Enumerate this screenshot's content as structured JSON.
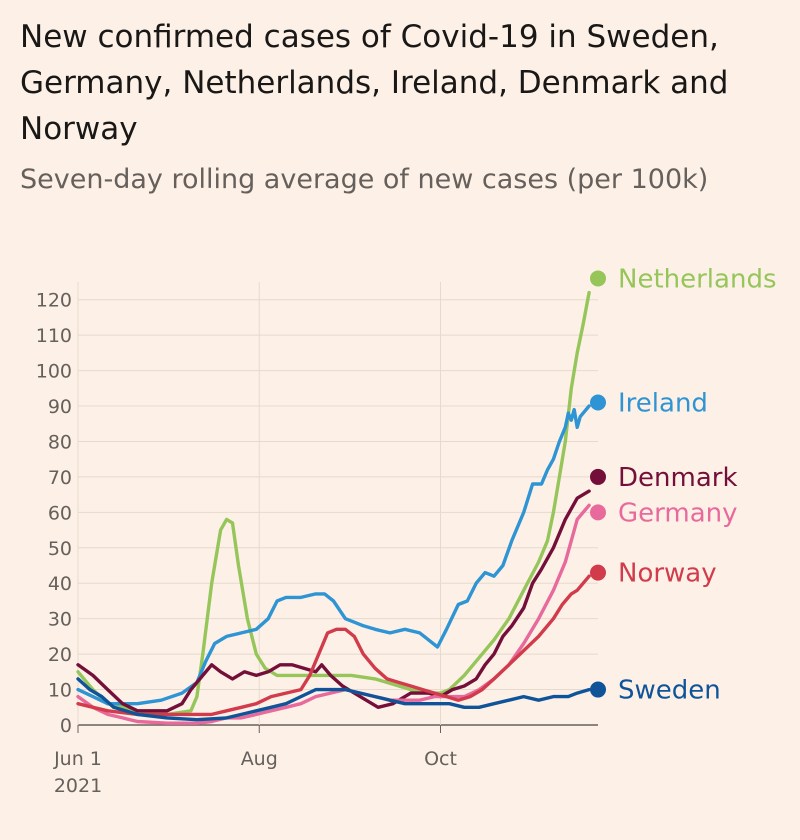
{
  "chart_data": {
    "type": "line",
    "title": "New confirmed cases of Covid-19 in Sweden, Germany, Netherlands, Ireland, Denmark and Norway",
    "subtitle": "Seven-day rolling average of new cases (per 100k)",
    "xlabel": "",
    "ylabel": "",
    "x_ticks": [
      {
        "label": "Jun 1",
        "sublabel": "2021",
        "day": 0
      },
      {
        "label": "Aug",
        "day": 61
      },
      {
        "label": "Oct",
        "day": 122
      }
    ],
    "y_ticks": [
      0,
      10,
      20,
      30,
      40,
      50,
      60,
      70,
      80,
      90,
      100,
      110,
      120
    ],
    "ylim": [
      0,
      125
    ],
    "xlim": [
      0,
      175
    ],
    "grid": "vertical",
    "series": [
      {
        "name": "Netherlands",
        "color": "#96c55a",
        "points": [
          [
            0,
            15
          ],
          [
            5,
            10
          ],
          [
            10,
            6
          ],
          [
            20,
            4
          ],
          [
            30,
            3
          ],
          [
            38,
            4
          ],
          [
            40,
            8
          ],
          [
            42,
            20
          ],
          [
            45,
            40
          ],
          [
            48,
            55
          ],
          [
            50,
            58
          ],
          [
            52,
            57
          ],
          [
            54,
            45
          ],
          [
            57,
            30
          ],
          [
            60,
            20
          ],
          [
            63,
            16
          ],
          [
            67,
            14
          ],
          [
            75,
            14
          ],
          [
            82,
            14
          ],
          [
            92,
            14
          ],
          [
            100,
            13
          ],
          [
            108,
            11
          ],
          [
            112,
            10
          ],
          [
            117,
            9
          ],
          [
            122,
            9
          ],
          [
            125,
            10
          ],
          [
            130,
            14
          ],
          [
            135,
            19
          ],
          [
            140,
            24
          ],
          [
            145,
            30
          ],
          [
            150,
            38
          ],
          [
            155,
            46
          ],
          [
            158,
            52
          ],
          [
            160,
            60
          ],
          [
            162,
            70
          ],
          [
            164,
            80
          ],
          [
            166,
            95
          ],
          [
            168,
            105
          ],
          [
            170,
            113
          ],
          [
            172,
            122
          ]
        ]
      },
      {
        "name": "Ireland",
        "color": "#2e94d3",
        "points": [
          [
            0,
            10
          ],
          [
            5,
            8
          ],
          [
            10,
            6
          ],
          [
            20,
            6
          ],
          [
            28,
            7
          ],
          [
            35,
            9
          ],
          [
            40,
            12
          ],
          [
            43,
            18
          ],
          [
            46,
            23
          ],
          [
            50,
            25
          ],
          [
            55,
            26
          ],
          [
            60,
            27
          ],
          [
            64,
            30
          ],
          [
            67,
            35
          ],
          [
            70,
            36
          ],
          [
            75,
            36
          ],
          [
            80,
            37
          ],
          [
            83,
            37
          ],
          [
            86,
            35
          ],
          [
            90,
            30
          ],
          [
            93,
            29
          ],
          [
            96,
            28
          ],
          [
            100,
            27
          ],
          [
            105,
            26
          ],
          [
            110,
            27
          ],
          [
            115,
            26
          ],
          [
            118,
            24
          ],
          [
            121,
            22
          ],
          [
            124,
            27
          ],
          [
            128,
            34
          ],
          [
            131,
            35
          ],
          [
            134,
            40
          ],
          [
            137,
            43
          ],
          [
            140,
            42
          ],
          [
            143,
            45
          ],
          [
            146,
            52
          ],
          [
            150,
            60
          ],
          [
            153,
            68
          ],
          [
            156,
            68
          ],
          [
            158,
            72
          ],
          [
            160,
            75
          ],
          [
            162,
            80
          ],
          [
            164,
            84
          ],
          [
            165,
            88
          ],
          [
            166,
            86
          ],
          [
            167,
            89
          ],
          [
            168,
            84
          ],
          [
            169,
            87
          ],
          [
            172,
            90
          ]
        ]
      },
      {
        "name": "Denmark",
        "color": "#740f3a",
        "points": [
          [
            0,
            17
          ],
          [
            5,
            14
          ],
          [
            10,
            10
          ],
          [
            15,
            6
          ],
          [
            20,
            4
          ],
          [
            25,
            4
          ],
          [
            30,
            4
          ],
          [
            35,
            6
          ],
          [
            38,
            10
          ],
          [
            42,
            14
          ],
          [
            45,
            17
          ],
          [
            48,
            15
          ],
          [
            52,
            13
          ],
          [
            56,
            15
          ],
          [
            60,
            14
          ],
          [
            64,
            15
          ],
          [
            68,
            17
          ],
          [
            72,
            17
          ],
          [
            76,
            16
          ],
          [
            80,
            15
          ],
          [
            82,
            17
          ],
          [
            85,
            14
          ],
          [
            89,
            11
          ],
          [
            93,
            9
          ],
          [
            97,
            7
          ],
          [
            101,
            5
          ],
          [
            106,
            6
          ],
          [
            112,
            9
          ],
          [
            118,
            9
          ],
          [
            122,
            8
          ],
          [
            126,
            10
          ],
          [
            130,
            11
          ],
          [
            134,
            13
          ],
          [
            137,
            17
          ],
          [
            140,
            20
          ],
          [
            143,
            25
          ],
          [
            146,
            28
          ],
          [
            150,
            33
          ],
          [
            153,
            40
          ],
          [
            156,
            44
          ],
          [
            160,
            50
          ],
          [
            164,
            58
          ],
          [
            168,
            64
          ],
          [
            172,
            66
          ]
        ]
      },
      {
        "name": "Germany",
        "color": "#e8699c",
        "points": [
          [
            0,
            8
          ],
          [
            5,
            5
          ],
          [
            10,
            3
          ],
          [
            15,
            2
          ],
          [
            20,
            1
          ],
          [
            30,
            0.5
          ],
          [
            40,
            0.5
          ],
          [
            45,
            1
          ],
          [
            50,
            2
          ],
          [
            55,
            2
          ],
          [
            60,
            3
          ],
          [
            65,
            4
          ],
          [
            70,
            5
          ],
          [
            75,
            6
          ],
          [
            80,
            8
          ],
          [
            85,
            9
          ],
          [
            90,
            10
          ],
          [
            95,
            9
          ],
          [
            100,
            8
          ],
          [
            105,
            7
          ],
          [
            110,
            7
          ],
          [
            115,
            7
          ],
          [
            120,
            8
          ],
          [
            125,
            8
          ],
          [
            130,
            8
          ],
          [
            135,
            10
          ],
          [
            140,
            13
          ],
          [
            145,
            17
          ],
          [
            150,
            23
          ],
          [
            155,
            30
          ],
          [
            160,
            38
          ],
          [
            164,
            46
          ],
          [
            166,
            52
          ],
          [
            168,
            58
          ],
          [
            172,
            62
          ]
        ]
      },
      {
        "name": "Norway",
        "color": "#d13b4b",
        "points": [
          [
            0,
            6
          ],
          [
            5,
            5
          ],
          [
            10,
            4
          ],
          [
            20,
            3
          ],
          [
            30,
            3
          ],
          [
            40,
            3
          ],
          [
            45,
            3
          ],
          [
            50,
            4
          ],
          [
            55,
            5
          ],
          [
            60,
            6
          ],
          [
            65,
            8
          ],
          [
            70,
            9
          ],
          [
            75,
            10
          ],
          [
            78,
            14
          ],
          [
            81,
            20
          ],
          [
            84,
            26
          ],
          [
            87,
            27
          ],
          [
            90,
            27
          ],
          [
            93,
            25
          ],
          [
            96,
            20
          ],
          [
            100,
            16
          ],
          [
            104,
            13
          ],
          [
            108,
            12
          ],
          [
            112,
            11
          ],
          [
            116,
            10
          ],
          [
            120,
            9
          ],
          [
            124,
            8
          ],
          [
            128,
            7
          ],
          [
            132,
            8
          ],
          [
            136,
            10
          ],
          [
            140,
            13
          ],
          [
            145,
            17
          ],
          [
            150,
            21
          ],
          [
            155,
            25
          ],
          [
            160,
            30
          ],
          [
            163,
            34
          ],
          [
            166,
            37
          ],
          [
            168,
            38
          ],
          [
            172,
            42
          ]
        ]
      },
      {
        "name": "Sweden",
        "color": "#0f5499",
        "points": [
          [
            0,
            13
          ],
          [
            4,
            10
          ],
          [
            8,
            8
          ],
          [
            12,
            5
          ],
          [
            20,
            3
          ],
          [
            30,
            2
          ],
          [
            40,
            1.5
          ],
          [
            50,
            2
          ],
          [
            55,
            3
          ],
          [
            60,
            4
          ],
          [
            65,
            5
          ],
          [
            70,
            6
          ],
          [
            75,
            8
          ],
          [
            80,
            10
          ],
          [
            85,
            10
          ],
          [
            90,
            10
          ],
          [
            95,
            9
          ],
          [
            100,
            8
          ],
          [
            105,
            7
          ],
          [
            110,
            6
          ],
          [
            115,
            6
          ],
          [
            120,
            6
          ],
          [
            125,
            6
          ],
          [
            130,
            5
          ],
          [
            135,
            5
          ],
          [
            140,
            6
          ],
          [
            145,
            7
          ],
          [
            150,
            8
          ],
          [
            155,
            7
          ],
          [
            160,
            8
          ],
          [
            165,
            8
          ],
          [
            168,
            9
          ],
          [
            172,
            10
          ]
        ]
      }
    ],
    "legend": [
      {
        "name": "Netherlands",
        "color": "#96c55a",
        "label_value": 126
      },
      {
        "name": "Ireland",
        "color": "#2e94d3",
        "label_value": 91
      },
      {
        "name": "Denmark",
        "color": "#740f3a",
        "label_value": 70
      },
      {
        "name": "Germany",
        "color": "#e8699c",
        "label_value": 60
      },
      {
        "name": "Norway",
        "color": "#d13b4b",
        "label_value": 43
      },
      {
        "name": "Sweden",
        "color": "#0f5499",
        "label_value": 10
      }
    ]
  }
}
